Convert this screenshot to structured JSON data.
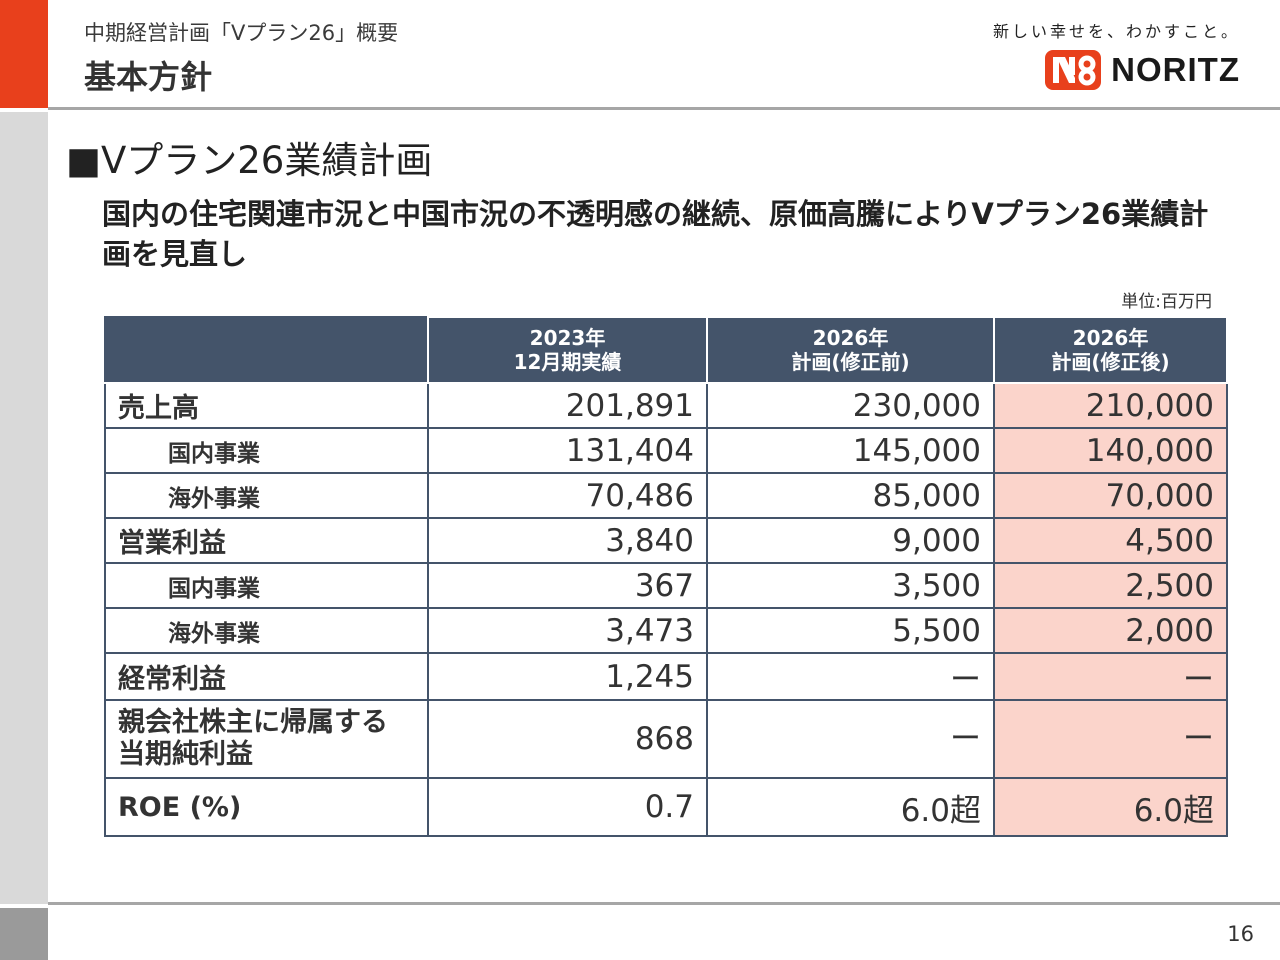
{
  "header": {
    "breadcrumb": "中期経営計画「Vプラン26」概要",
    "title": "基本方針",
    "tagline": "新しい幸せを、わかすこと。",
    "logo_text": "NORITZ"
  },
  "section": {
    "heading": "■Vプラン26業績計画",
    "lead": "国内の住宅関連市況と中国市況の不透明感の継続、原価高騰によりVプラン26業績計画を見直し",
    "unit": "単位:百万円"
  },
  "table": {
    "columns": [
      {
        "line1": "2023年",
        "line2": "12月期実績"
      },
      {
        "line1": "2026年",
        "line2": "計画(修正前)"
      },
      {
        "line1": "2026年",
        "line2": "計画(修正後)"
      }
    ],
    "rows": [
      {
        "label": "売上高",
        "values": [
          "201,891",
          "230,000",
          "210,000"
        ]
      },
      {
        "label": "国内事業",
        "values": [
          "131,404",
          "145,000",
          "140,000"
        ]
      },
      {
        "label": "海外事業",
        "values": [
          "70,486",
          "85,000",
          "70,000"
        ]
      },
      {
        "label": "営業利益",
        "values": [
          "3,840",
          "9,000",
          "4,500"
        ]
      },
      {
        "label": "国内事業",
        "values": [
          "367",
          "3,500",
          "2,500"
        ]
      },
      {
        "label": "海外事業",
        "values": [
          "3,473",
          "5,500",
          "2,000"
        ]
      },
      {
        "label": "経常利益",
        "values": [
          "1,245",
          "ー",
          "ー"
        ]
      },
      {
        "label_line1": "親会社株主に帰属する",
        "label_line2": "当期純利益",
        "values": [
          "868",
          "ー",
          "ー"
        ]
      },
      {
        "label": "ROE (%)",
        "values": [
          "0.7",
          "6.0超",
          "6.0超"
        ]
      }
    ]
  },
  "footer": {
    "page_number": "16"
  },
  "colors": {
    "accent": "#e8401c",
    "table_header": "#44546a",
    "highlight": "#fbd4cb",
    "logo_red": "#e8401c"
  }
}
